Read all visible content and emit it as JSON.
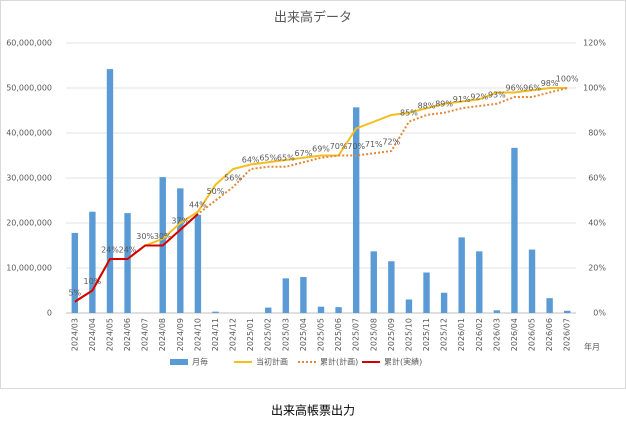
{
  "chart_data": {
    "type": "bar",
    "title": "出来高データ",
    "caption": "出来高帳票出力",
    "xlabel": "年月",
    "categories": [
      "2024/03",
      "2024/04",
      "2024/05",
      "2024/06",
      "2024/07",
      "2024/08",
      "2024/09",
      "2024/10",
      "2024/11",
      "2024/12",
      "2025/01",
      "2025/02",
      "2025/03",
      "2025/04",
      "2025/05",
      "2025/06",
      "2025/07",
      "2025/08",
      "2025/09",
      "2025/10",
      "2025/11",
      "2025/12",
      "2026/01",
      "2026/02",
      "2026/03",
      "2026/04",
      "2026/05",
      "2026/06",
      "2026/07"
    ],
    "series": [
      {
        "name": "月毎",
        "type": "bar",
        "color": "#5b9bd5",
        "values": [
          17800000,
          22500000,
          54200000,
          22200000,
          0,
          30200000,
          27700000,
          21800000,
          300000,
          0,
          0,
          1200000,
          7700000,
          8000000,
          1400000,
          1300000,
          45700000,
          13700000,
          11500000,
          3000000,
          9000000,
          4500000,
          16800000,
          13700000,
          600000,
          36700000,
          14100000,
          3300000,
          500000
        ]
      },
      {
        "name": "当初計画",
        "type": "line",
        "axis": "y2",
        "color": "#f5be1e",
        "line_style": "solid",
        "values": [
          5,
          10,
          24,
          24,
          30,
          33,
          40,
          45,
          57,
          64,
          66,
          67,
          68,
          69,
          70,
          70,
          82,
          85,
          88,
          89,
          91,
          93,
          94,
          95,
          98,
          98,
          99,
          100,
          100
        ]
      },
      {
        "name": "累計(計画)",
        "type": "line",
        "axis": "y2",
        "color": "#e2883a",
        "line_style": "dotted",
        "values": [
          5,
          10,
          24,
          24,
          30,
          30,
          37,
          44,
          50,
          56,
          64,
          65,
          65,
          67,
          69,
          70,
          70,
          71,
          72,
          85,
          88,
          89,
          91,
          92,
          93,
          96,
          96,
          98,
          100
        ],
        "value_labels": [
          "5%",
          "10%",
          "24%",
          "24%",
          "30%",
          "30%",
          "37%",
          "44%",
          "50%",
          "56%",
          "64%",
          "65%",
          "65%",
          "67%",
          "69%",
          "70%",
          "70%",
          "71%",
          "72%",
          "85%",
          "88%",
          "89%",
          "91%",
          "92%",
          "93%",
          "96%",
          "96%",
          "98%",
          "100%"
        ]
      },
      {
        "name": "累計(実績)",
        "type": "line",
        "axis": "y2",
        "color": "#d40000",
        "line_style": "solid",
        "values": [
          5,
          10,
          24,
          24,
          30,
          30,
          37,
          44,
          null,
          null,
          null,
          null,
          null,
          null,
          null,
          null,
          null,
          null,
          null,
          null,
          null,
          null,
          null,
          null,
          null,
          null,
          null,
          null,
          null
        ]
      }
    ],
    "ylim": [
      0,
      60000000
    ],
    "yticks": [
      0,
      {
        "value": 10000000,
        "label": "10,000,000"
      },
      {
        "value": 20000000,
        "label": "20,000,000"
      },
      {
        "value": 30000000,
        "label": "30,000,000"
      },
      {
        "value": 40000000,
        "label": "40,000,000"
      },
      {
        "value": 50000000,
        "label": "50,000,000"
      },
      {
        "value": 60000000,
        "label": "60,000,000"
      }
    ],
    "y2lim": [
      0,
      120
    ],
    "y2ticks": [
      {
        "value": 0,
        "label": "0%"
      },
      {
        "value": 20,
        "label": "20%"
      },
      {
        "value": 40,
        "label": "40%"
      },
      {
        "value": 60,
        "label": "60%"
      },
      {
        "value": 80,
        "label": "80%"
      },
      {
        "value": 100,
        "label": "100%"
      },
      {
        "value": 120,
        "label": "120%"
      }
    ],
    "grid": true,
    "legend": "bottom"
  }
}
